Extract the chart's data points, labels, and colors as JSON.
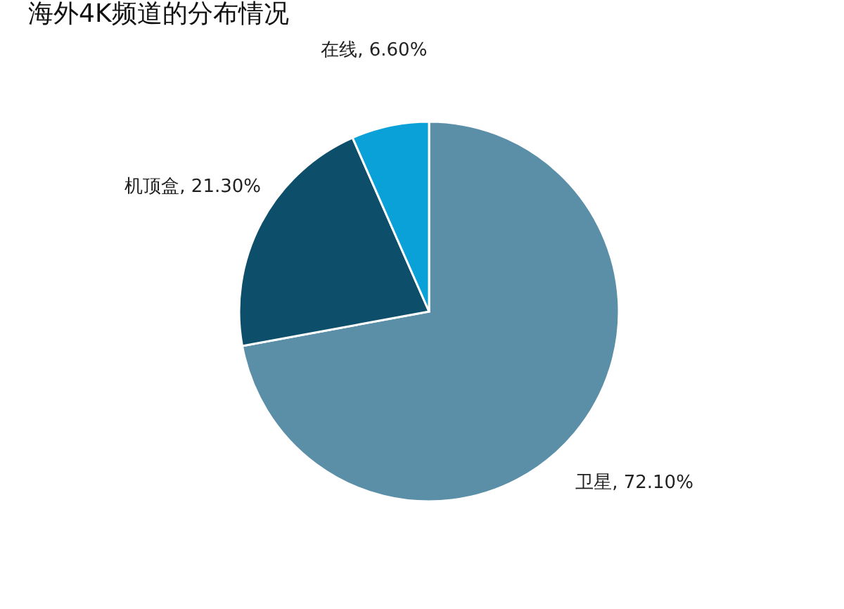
{
  "chart_data": {
    "type": "pie",
    "title": "海外4K频道的分布情况",
    "categories": [
      "卫星",
      "机顶盒",
      "在线"
    ],
    "values": [
      72.1,
      21.3,
      6.6
    ],
    "value_labels": [
      "72.10%",
      "21.30%",
      "6.60%"
    ],
    "colors": [
      "#5b8fa8",
      "#0d4f6b",
      "#0aa0d8"
    ],
    "legend": false
  }
}
